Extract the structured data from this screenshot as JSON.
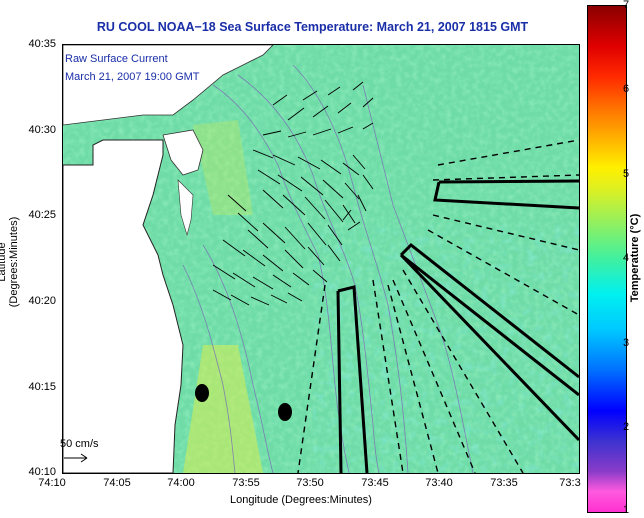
{
  "title": "RU COOL  NOAA−18  Sea Surface Temperature:  March 21, 2007 1815 GMT",
  "annotation": {
    "line1": "Raw Surface Current",
    "line2": "March 21, 2007 19:00 GMT"
  },
  "axes": {
    "ylabel": "Latitude (Degrees:Minutes)",
    "xlabel": "Longitude (Degrees:Minutes)",
    "yticks": [
      "40:35",
      "40:30",
      "40:25",
      "40:20",
      "40:15",
      "40:10"
    ],
    "xticks": [
      "74:10",
      "74:05",
      "74:00",
      "73:55",
      "73:50",
      "73:45",
      "73:40",
      "73:35",
      "73:3"
    ]
  },
  "colorbar": {
    "label": "Temperature (°C)",
    "ticks": [
      "7",
      "6",
      "5",
      "4",
      "3",
      "2",
      "1"
    ]
  },
  "scale": {
    "label": "50 cm/s"
  },
  "colors": {
    "title": "#1a2ea8",
    "water": "#6fdca8",
    "land": "#ffffff",
    "lines": "#000000"
  }
}
